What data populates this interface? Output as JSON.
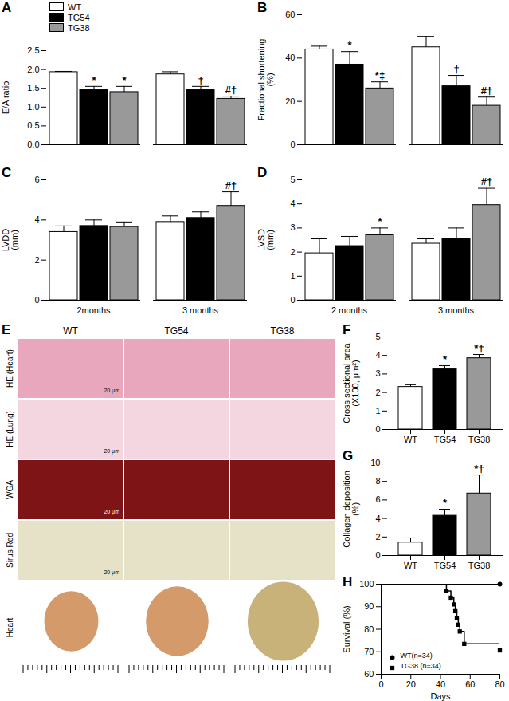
{
  "chart_data": [
    {
      "panel": "A",
      "type": "bar",
      "ylabel": "E/A ratio",
      "categories": [
        null,
        null
      ],
      "series": [
        {
          "name": "WT",
          "color": "#ffffff",
          "values": [
            1.93,
            1.87
          ],
          "errors": [
            0.02,
            0.07
          ],
          "annotations": [
            null,
            null
          ]
        },
        {
          "name": "TG54",
          "color": "#000000",
          "values": [
            1.45,
            1.45
          ],
          "errors": [
            0.1,
            0.1
          ],
          "annotations": [
            "*",
            "†"
          ]
        },
        {
          "name": "TG38",
          "color": "#999999",
          "values": [
            1.4,
            1.22
          ],
          "errors": [
            0.15,
            0.07
          ],
          "annotations": [
            "*",
            "#†"
          ]
        }
      ],
      "ylim": [
        0,
        2.5
      ],
      "yticks": [
        {
          "value": 0,
          "label": "0.0"
        },
        0.5,
        {
          "value": 1,
          "label": "1.0"
        },
        1.5,
        {
          "value": 2,
          "label": "2.0"
        },
        2.5
      ],
      "legend": "top-left"
    },
    {
      "panel": "B",
      "type": "bar",
      "ylabel": "Fractional shortening (%)",
      "categories": [
        null,
        null
      ],
      "series": [
        {
          "name": "WT",
          "color": "#ffffff",
          "values": [
            44,
            45
          ],
          "errors": [
            1.5,
            5
          ],
          "annotations": [
            null,
            null
          ]
        },
        {
          "name": "TG54",
          "color": "#000000",
          "values": [
            37,
            27
          ],
          "errors": [
            6,
            5
          ],
          "annotations": [
            "*",
            "†"
          ]
        },
        {
          "name": "TG38",
          "color": "#999999",
          "values": [
            26,
            18
          ],
          "errors": [
            3,
            4
          ],
          "annotations": [
            "*‡",
            "#†"
          ]
        }
      ],
      "ylim": [
        0,
        60
      ],
      "yticks": [
        0,
        20,
        40,
        60
      ]
    },
    {
      "panel": "C",
      "type": "bar",
      "ylabel": "LVDD (mm)",
      "categories": [
        "2months",
        "3 months"
      ],
      "series": [
        {
          "name": "WT",
          "color": "#ffffff",
          "values": [
            3.4,
            3.9
          ],
          "errors": [
            0.3,
            0.3
          ],
          "annotations": [
            null,
            null
          ]
        },
        {
          "name": "TG54",
          "color": "#000000",
          "values": [
            3.7,
            4.1
          ],
          "errors": [
            0.3,
            0.3
          ],
          "annotations": [
            null,
            null
          ]
        },
        {
          "name": "TG38",
          "color": "#999999",
          "values": [
            3.65,
            4.7
          ],
          "errors": [
            0.25,
            0.7
          ],
          "annotations": [
            null,
            "#†"
          ]
        }
      ],
      "ylim": [
        0,
        6
      ],
      "yticks": [
        0,
        2,
        4,
        6
      ]
    },
    {
      "panel": "D",
      "type": "bar",
      "ylabel": "LVSD (mm)",
      "categories": [
        "2 months",
        "3 months"
      ],
      "series": [
        {
          "name": "WT",
          "color": "#ffffff",
          "values": [
            1.95,
            2.35
          ],
          "errors": [
            0.6,
            0.2
          ],
          "annotations": [
            null,
            null
          ]
        },
        {
          "name": "TG54",
          "color": "#000000",
          "values": [
            2.25,
            2.55
          ],
          "errors": [
            0.4,
            0.45
          ],
          "annotations": [
            null,
            null
          ]
        },
        {
          "name": "TG38",
          "color": "#999999",
          "values": [
            2.7,
            3.95
          ],
          "errors": [
            0.3,
            0.7
          ],
          "annotations": [
            "*",
            "#†"
          ]
        }
      ],
      "ylim": [
        0,
        5
      ],
      "yticks": [
        0,
        1,
        2,
        3,
        4,
        5
      ]
    },
    {
      "panel": "E",
      "type": "image_grid",
      "columns": [
        "WT",
        "TG54",
        "TG38"
      ],
      "rows": [
        "HE (Heart)",
        "HE (Lung)",
        "WGA",
        "Sirus Red",
        "Heart"
      ],
      "scale_bar": "20 μm"
    },
    {
      "panel": "F",
      "type": "bar",
      "ylabel": "Cross sectional area (X100, μm²)",
      "categories": [
        "WT",
        "TG54",
        "TG38"
      ],
      "values": [
        2.3,
        3.25,
        3.85
      ],
      "errors": [
        0.12,
        0.2,
        0.2
      ],
      "annotations": [
        null,
        "*",
        "*†"
      ],
      "colors": [
        "#ffffff",
        "#000000",
        "#999999"
      ],
      "ylim": [
        0,
        5
      ],
      "yticks": [
        0,
        1,
        2,
        3,
        4,
        5
      ]
    },
    {
      "panel": "G",
      "type": "bar",
      "ylabel": "Collagen deposition (%)",
      "categories": [
        "WT",
        "TG54",
        "TG38"
      ],
      "values": [
        1.4,
        4.3,
        6.7
      ],
      "errors": [
        0.5,
        0.7,
        2
      ],
      "annotations": [
        null,
        "*",
        "*†"
      ],
      "colors": [
        "#ffffff",
        "#000000",
        "#999999"
      ],
      "ylim": [
        0,
        10
      ],
      "yticks": [
        0,
        2,
        4,
        6,
        8,
        10
      ]
    },
    {
      "panel": "H",
      "type": "line",
      "xlabel": "Days",
      "ylabel": "Survival (%)",
      "series": [
        {
          "name": "WT(n=34)",
          "color": "#000000",
          "marker": "circle",
          "x": [
            0,
            80
          ],
          "values": [
            100,
            100
          ]
        },
        {
          "name": "TG38 (n=34)",
          "color": "#000000",
          "marker": "square",
          "x": [
            0,
            44,
            47,
            49,
            50,
            51,
            52,
            53,
            56,
            80
          ],
          "values": [
            100,
            97,
            94,
            91,
            88,
            85,
            82,
            79,
            73.5,
            70.6
          ]
        }
      ],
      "xlim": [
        0,
        80
      ],
      "xticks": [
        0,
        20,
        40,
        60,
        80
      ],
      "ylim": [
        60,
        100
      ],
      "yticks": [
        60,
        70,
        80,
        90,
        100
      ],
      "legend": "bottom-left"
    }
  ]
}
